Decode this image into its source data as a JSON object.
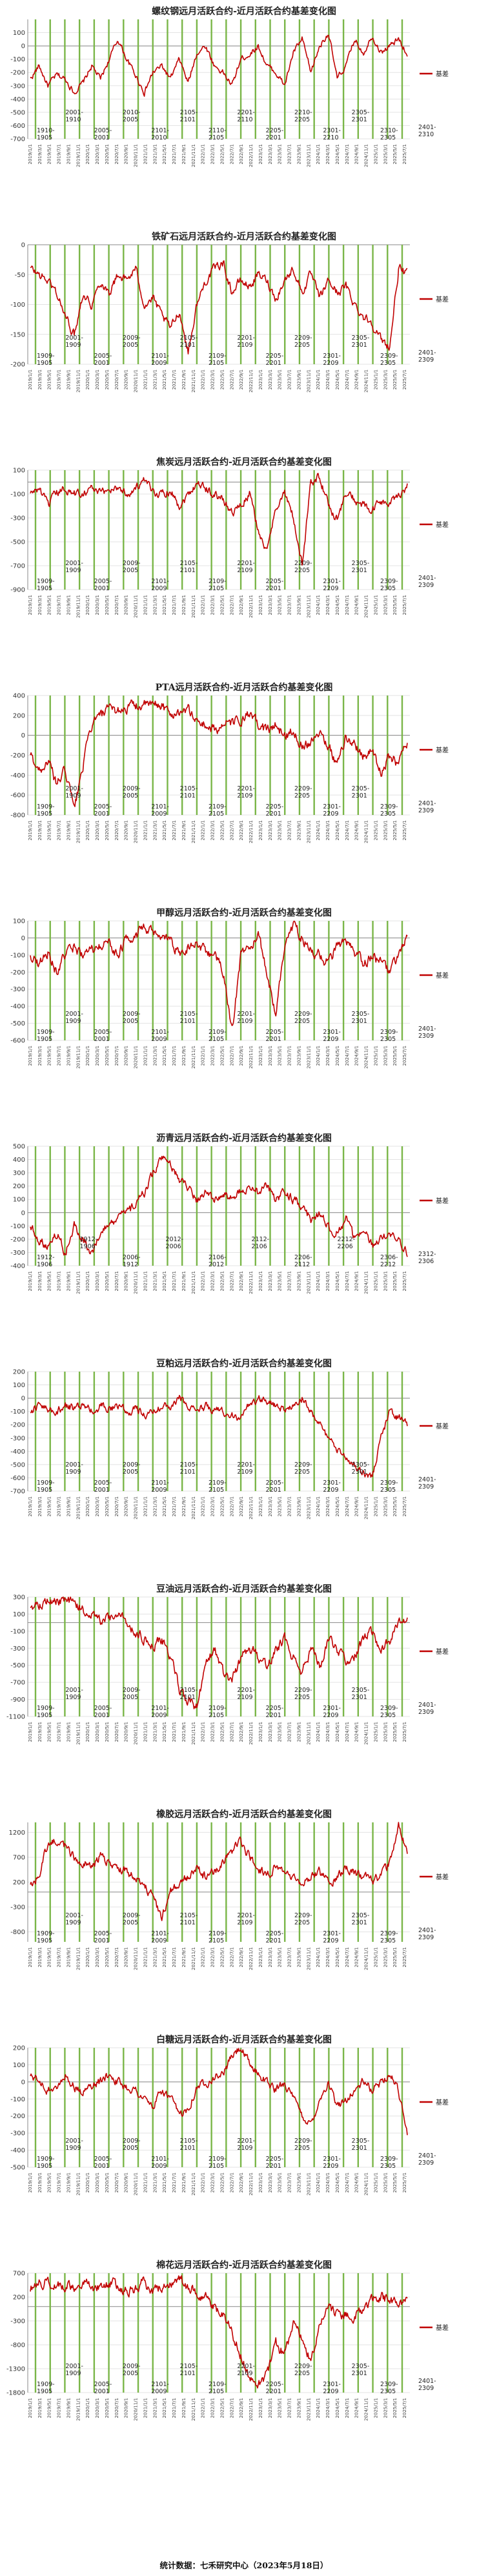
{
  "footer": "统计数据：七禾研究中心（2023年5月18日）",
  "chart_data": [
    {
      "type": "line",
      "title": "螺纹钢远月活跃合约-近月活跃合约基差变化图",
      "legend": "基差",
      "ylim": [
        -700,
        200
      ],
      "yticks": [
        100,
        0,
        -100,
        -200,
        -300,
        -400,
        -500,
        -600,
        -700
      ],
      "annotations": [
        "1910-\n1905",
        "2001-\n1910",
        "2005-\n2001",
        "2010-\n2005",
        "2101-\n2010",
        "2105-\n2101",
        "2110-\n2105",
        "2201-\n2110",
        "2205-\n2201",
        "2210-\n2205",
        "2301-\n2210",
        "2305-\n2301",
        "2310-\n2305",
        "2401-\n2310"
      ],
      "key_points": [
        -250,
        -150,
        -300,
        -220,
        -250,
        -350,
        -280,
        -150,
        -250,
        -100,
        50,
        -100,
        -220,
        -350,
        -200,
        -150,
        -250,
        -100,
        -280,
        -50,
        0,
        -150,
        -200,
        -300,
        -100,
        -60,
        0,
        -150,
        -200,
        -300,
        -50,
        50,
        -200,
        0,
        100,
        -250,
        -150,
        50,
        -50,
        80,
        -50,
        0,
        50,
        -60
      ]
    },
    {
      "type": "line",
      "title": "铁矿石远月活跃合约-近月活跃合约基差变化图",
      "legend": "基差",
      "ylim": [
        -200,
        0
      ],
      "yticks": [
        0,
        -50,
        -100,
        -150,
        -200
      ],
      "annotations": [
        "1909-\n1905",
        "2001-\n1909",
        "2005-\n2001",
        "2009-\n2005",
        "2101-\n2009",
        "2105-\n2101",
        "2109-\n2105",
        "2201-\n2109",
        "2205-\n2201",
        "2209-\n2205",
        "2301-\n2209",
        "2305-\n2301",
        "2309-\n2305",
        "2401-\n2309"
      ],
      "key_points": [
        -40,
        -50,
        -60,
        -80,
        -120,
        -150,
        -80,
        -100,
        -60,
        -80,
        -50,
        -60,
        -40,
        -100,
        -90,
        -120,
        -140,
        -110,
        -180,
        -100,
        -60,
        -40,
        -30,
        -80,
        -60,
        -70,
        -50,
        -60,
        -90,
        -60,
        -40,
        -80,
        -50,
        -90,
        -60,
        -80,
        -70,
        -100,
        -120,
        -130,
        -160,
        -170,
        -40,
        -50
      ]
    },
    {
      "type": "line",
      "title": "焦炭远月活跃合约-近月活跃合约基差变化图",
      "legend": "基差",
      "ylim": [
        -900,
        100
      ],
      "yticks": [
        100,
        -100,
        -300,
        -500,
        -700,
        -900
      ],
      "annotations": [
        "1909-\n1905",
        "2001-\n1909",
        "2005-\n2001",
        "2009-\n2005",
        "2101-\n2009",
        "2105-\n2101",
        "2109-\n2105",
        "2201-\n2109",
        "2205-\n2201",
        "2209-\n2205",
        "2301-\n2209",
        "2305-\n2301",
        "2309-\n2305",
        "2401-\n2309"
      ],
      "key_points": [
        -100,
        -50,
        -200,
        -100,
        -50,
        -100,
        -80,
        -50,
        -100,
        -60,
        -40,
        -100,
        -50,
        0,
        -80,
        -100,
        -60,
        -200,
        -100,
        0,
        -50,
        -100,
        -150,
        -250,
        -200,
        -100,
        -400,
        -600,
        -200,
        -100,
        -300,
        -700,
        0,
        50,
        -200,
        -300,
        -100,
        -150,
        -200,
        -250,
        -150,
        -200,
        -100,
        -30
      ]
    },
    {
      "type": "line",
      "title": "PTA远月活跃合约-近月活跃合约基差变化图",
      "legend": "基差",
      "ylim": [
        -800,
        400
      ],
      "yticks": [
        400,
        200,
        0,
        -200,
        -400,
        -600,
        -800
      ],
      "annotations": [
        "1909-\n1905",
        "2001-\n1909",
        "2005-\n2001",
        "2009-\n2005",
        "2101-\n2009",
        "2105-\n2101",
        "2109-\n2105",
        "2201-\n2109",
        "2205-\n2201",
        "2209-\n2205",
        "2301-\n2209",
        "2305-\n2301",
        "2309-\n2305",
        "2401-\n2309"
      ],
      "key_points": [
        -200,
        -350,
        -250,
        -500,
        -350,
        -750,
        -300,
        100,
        200,
        250,
        250,
        280,
        300,
        300,
        300,
        310,
        200,
        250,
        250,
        150,
        100,
        50,
        100,
        120,
        150,
        200,
        100,
        50,
        100,
        0,
        50,
        -100,
        -50,
        50,
        -100,
        -300,
        0,
        -100,
        -200,
        -150,
        -400,
        -200,
        -300,
        -50
      ]
    },
    {
      "type": "line",
      "title": "甲醇远月活跃合约-近月活跃合约基差变化图",
      "legend": "基差",
      "ylim": [
        -600,
        100
      ],
      "yticks": [
        100,
        0,
        -100,
        -200,
        -300,
        -400,
        -500,
        -600
      ],
      "annotations": [
        "1909-\n1905",
        "2001-\n1909",
        "2005-\n2001",
        "2009-\n2005",
        "2101-\n2009",
        "2105-\n2101",
        "2109-\n2105",
        "2201-\n2109",
        "2205-\n2201",
        "2209-\n2205",
        "2301-\n2209",
        "2305-\n2301",
        "2309-\n2305",
        "2401-\n2309"
      ],
      "key_points": [
        -100,
        -150,
        -80,
        -200,
        -100,
        -50,
        -100,
        -80,
        -50,
        -30,
        -100,
        0,
        20,
        50,
        30,
        -20,
        -10,
        -100,
        -50,
        -20,
        -80,
        -100,
        -200,
        -550,
        -100,
        -50,
        0,
        -200,
        -450,
        -50,
        80,
        0,
        -80,
        -100,
        -150,
        -50,
        -30,
        -100,
        -150,
        -100,
        -150,
        -200,
        -100,
        0
      ]
    },
    {
      "type": "line",
      "title": "沥青远月活跃合约-近月活跃合约基差变化图",
      "legend": "基差",
      "ylim": [
        -400,
        500
      ],
      "yticks": [
        500,
        400,
        300,
        200,
        100,
        0,
        -100,
        -200,
        -300,
        -400
      ],
      "annotations": [
        "1912-\n1906",
        "1912-\n1906",
        "2006-\n1912",
        "2012-\n2006",
        "2106-\n2012",
        "2112-\n2106",
        "2206-\n2112",
        "2212-\n2206",
        "2306-\n2212",
        "2312-\n2306"
      ],
      "key_points": [
        -100,
        -200,
        -250,
        -150,
        -300,
        -100,
        -200,
        -300,
        -150,
        -100,
        -50,
        0,
        50,
        150,
        300,
        400,
        350,
        250,
        200,
        100,
        150,
        100,
        150,
        100,
        150,
        200,
        150,
        200,
        100,
        150,
        100,
        50,
        -50,
        0,
        -100,
        -150,
        -50,
        -200,
        -150,
        -250,
        -200,
        -150,
        -200,
        -300
      ]
    },
    {
      "type": "line",
      "title": "豆粕远月活跃合约-近月活跃合约基差变化图",
      "legend": "基差",
      "ylim": [
        -700,
        200
      ],
      "yticks": [
        200,
        100,
        0,
        -100,
        -200,
        -300,
        -400,
        -500,
        -600,
        -700
      ],
      "annotations": [
        "1909-\n1905",
        "2001-\n1909",
        "2005-\n2001",
        "2009-\n2005",
        "2101-\n2009",
        "2105-\n2101",
        "2109-\n2105",
        "2201-\n2109",
        "2205-\n2201",
        "2209-\n2205",
        "2301-\n2209",
        "2305-\n2301",
        "2309-\n2305",
        "2401-\n2309"
      ],
      "key_points": [
        -100,
        -50,
        -80,
        -100,
        -60,
        -80,
        -50,
        -100,
        -60,
        -80,
        -50,
        -100,
        -80,
        -120,
        -100,
        -60,
        -80,
        0,
        -50,
        -100,
        -60,
        -80,
        -100,
        -120,
        -150,
        -50,
        0,
        -20,
        -50,
        -100,
        -50,
        0,
        -100,
        -200,
        -300,
        -400,
        -450,
        -500,
        -550,
        -600,
        -300,
        -100,
        -150,
        -200
      ]
    },
    {
      "type": "line",
      "title": "豆油远月活跃合约-近月活跃合约基差变化图",
      "legend": "基差",
      "ylim": [
        -1100,
        300
      ],
      "yticks": [
        300,
        100,
        -100,
        -300,
        -500,
        -700,
        -900,
        -1100
      ],
      "annotations": [
        "1909-\n1905",
        "2001-\n1909",
        "2005-\n2001",
        "2009-\n2005",
        "2101-\n2009",
        "2105-\n2101",
        "2109-\n2105",
        "2201-\n2109",
        "2205-\n2201",
        "2209-\n2205",
        "2301-\n2209",
        "2305-\n2301",
        "2309-\n2305",
        "2401-\n2309"
      ],
      "key_points": [
        200,
        220,
        250,
        260,
        250,
        200,
        150,
        100,
        0,
        50,
        100,
        0,
        -100,
        -200,
        -300,
        -200,
        -400,
        -800,
        -900,
        -1000,
        -500,
        -300,
        -600,
        -700,
        -400,
        -300,
        -400,
        -500,
        -300,
        -200,
        -400,
        -600,
        -300,
        -500,
        -200,
        -300,
        -500,
        -400,
        -200,
        -100,
        -300,
        -200,
        0,
        50
      ]
    },
    {
      "type": "line",
      "title": "橡胶远月活跃合约-近月活跃合约基差变化图",
      "legend": "基差",
      "ylim": [
        -1000,
        1400
      ],
      "yticks": [
        1200,
        700,
        200,
        -300,
        -800
      ],
      "annotations": [
        "1909-\n1905",
        "2001-\n1909",
        "2005-\n2001",
        "2009-\n2005",
        "2101-\n2009",
        "2105-\n2101",
        "2109-\n2105",
        "2201-\n2109",
        "2205-\n2201",
        "2209-\n2205",
        "2301-\n2209",
        "2305-\n2301",
        "2309-\n2305",
        "2401-\n2309"
      ],
      "key_points": [
        200,
        300,
        1000,
        1050,
        900,
        700,
        600,
        500,
        700,
        600,
        500,
        400,
        300,
        100,
        -100,
        -500,
        0,
        200,
        300,
        500,
        300,
        400,
        600,
        800,
        1000,
        700,
        500,
        300,
        500,
        400,
        300,
        200,
        300,
        400,
        200,
        300,
        500,
        400,
        300,
        200,
        300,
        600,
        1350,
        800
      ]
    },
    {
      "type": "line",
      "title": "白糖远月活跃合约-近月活跃合约基差变化图",
      "legend": "基差",
      "ylim": [
        -500,
        200
      ],
      "yticks": [
        200,
        100,
        0,
        -100,
        -200,
        -300,
        -400,
        -500
      ],
      "annotations": [
        "1909-\n1905",
        "2001-\n1909",
        "2005-\n2001",
        "2009-\n2005",
        "2101-\n2009",
        "2105-\n2101",
        "2109-\n2105",
        "2201-\n2109",
        "2205-\n2201",
        "2209-\n2205",
        "2301-\n2209",
        "2305-\n2301",
        "2309-\n2305",
        "2401-\n2309"
      ],
      "key_points": [
        50,
        0,
        -50,
        -20,
        50,
        -30,
        -60,
        -20,
        0,
        50,
        0,
        -30,
        -50,
        -100,
        -150,
        -50,
        -100,
        -200,
        -150,
        -30,
        0,
        30,
        50,
        150,
        200,
        100,
        50,
        0,
        -50,
        0,
        -100,
        -200,
        -250,
        -100,
        0,
        -150,
        -100,
        -50,
        0,
        -50,
        0,
        50,
        -50,
        -300
      ]
    },
    {
      "type": "line",
      "title": "棉花远月活跃合约-近月活跃合约基差变化图",
      "legend": "基差",
      "ylim": [
        -1800,
        700
      ],
      "yticks": [
        700,
        200,
        -300,
        -800,
        -1300,
        -1800
      ],
      "annotations": [
        "1909-\n1905",
        "2001-\n1909",
        "2005-\n2001",
        "2009-\n2005",
        "2101-\n2009",
        "2105-\n2101",
        "2109-\n2105",
        "2201-\n2109",
        "2205-\n2201",
        "2209-\n2205",
        "2301-\n2209",
        "2305-\n2301",
        "2309-\n2305",
        "2401-\n2309"
      ],
      "key_points": [
        400,
        500,
        550,
        500,
        400,
        450,
        500,
        400,
        450,
        500,
        450,
        300,
        400,
        500,
        300,
        400,
        500,
        600,
        400,
        300,
        200,
        0,
        -200,
        -500,
        -1000,
        -1500,
        -1700,
        -1400,
        -800,
        -1000,
        -400,
        -600,
        -1200,
        -400,
        0,
        -200,
        -100,
        -200,
        0,
        100,
        200,
        100,
        50,
        150
      ]
    }
  ]
}
